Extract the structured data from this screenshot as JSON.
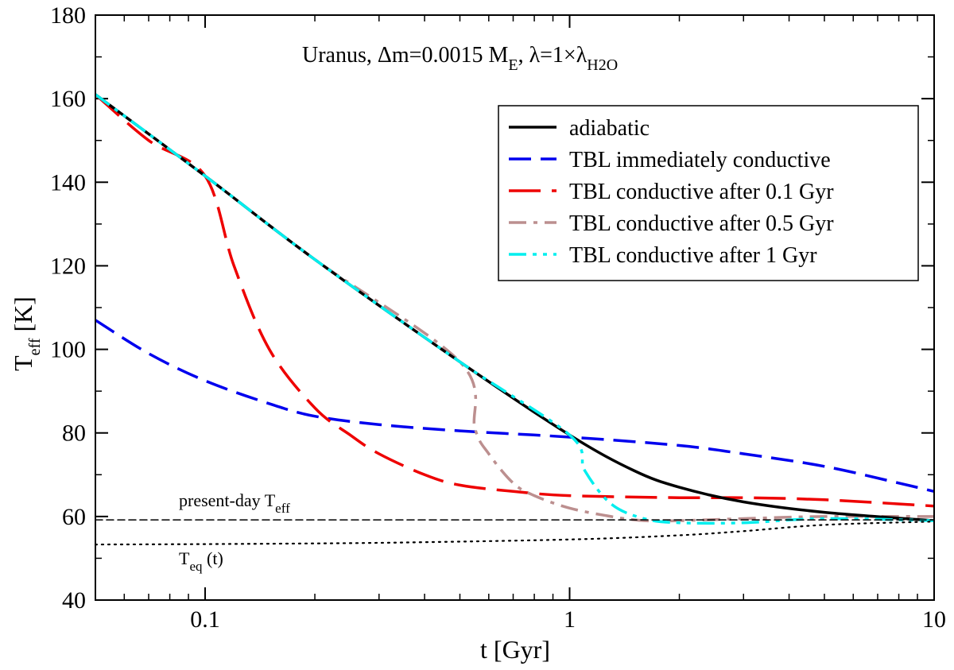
{
  "chart_data": {
    "type": "line",
    "title": "Uranus, Δm=0.0015 M",
    "title_parts": {
      "main": "Uranus, Δm=0.0015 M",
      "m_sub": "E",
      "lambda_text": ", λ=1×λ",
      "lambda_sub": "H2O"
    },
    "xlabel": "t [Gyr]",
    "ylabel": "T",
    "ylabel_sub": "eff",
    "ylabel_unit": " [K]",
    "x_scale": "log",
    "xlim": [
      0.05,
      10
    ],
    "ylim": [
      40,
      180
    ],
    "x_major_ticks": [
      {
        "value": 0.1,
        "label": "0.1"
      },
      {
        "value": 1,
        "label": "1"
      },
      {
        "value": 10,
        "label": "10"
      }
    ],
    "y_major_ticks": [
      {
        "value": 40,
        "label": "40"
      },
      {
        "value": 60,
        "label": "60"
      },
      {
        "value": 80,
        "label": "80"
      },
      {
        "value": 100,
        "label": "100"
      },
      {
        "value": 120,
        "label": "120"
      },
      {
        "value": 140,
        "label": "140"
      },
      {
        "value": 160,
        "label": "160"
      },
      {
        "value": 180,
        "label": "180"
      }
    ],
    "legend_position": "top-right",
    "series": [
      {
        "name": "adiabatic",
        "color": "#000000",
        "style": "solid",
        "x": [
          0.05,
          0.1,
          0.2,
          0.5,
          1.0,
          1.5,
          2.0,
          3.0,
          5.0,
          10.0
        ],
        "y": [
          161,
          141.5,
          121.5,
          97,
          79.5,
          71,
          67,
          63.5,
          61,
          59
        ]
      },
      {
        "name": "TBL immediately conductive",
        "color": "#0000ee",
        "style": "dashed",
        "x": [
          0.05,
          0.07,
          0.1,
          0.15,
          0.2,
          0.3,
          0.5,
          1.0,
          2.0,
          3.0,
          5.0,
          8.0,
          10.0
        ],
        "y": [
          107,
          99,
          92.5,
          87,
          84,
          82,
          80.5,
          79,
          77,
          75,
          72,
          68,
          66
        ]
      },
      {
        "name": "TBL conductive after 0.1 Gyr",
        "color": "#ee0000",
        "style": "longdash",
        "x": [
          0.05,
          0.07,
          0.1,
          0.12,
          0.15,
          0.2,
          0.25,
          0.3,
          0.4,
          0.5,
          0.7,
          1.0,
          2.0,
          3.0,
          5.0,
          10.0
        ],
        "y": [
          161,
          150,
          141.5,
          120,
          100,
          86,
          79.5,
          75,
          70,
          67.5,
          66,
          65,
          64.5,
          64.5,
          64,
          62.5
        ]
      },
      {
        "name": "TBL conductive after 0.5 Gyr",
        "color": "#bc8f8f",
        "style": "dashdot",
        "x": [
          0.05,
          0.1,
          0.2,
          0.5,
          0.55,
          0.6,
          0.7,
          0.8,
          1.0,
          1.3,
          1.6,
          2.0,
          3.0,
          5.0,
          10.0
        ],
        "y": [
          161,
          141.5,
          121.5,
          97,
          81,
          75,
          68,
          65,
          62,
          60,
          59,
          59,
          59.5,
          60,
          60
        ]
      },
      {
        "name": "TBL conductive after 1 Gyr",
        "color": "#00eeee",
        "style": "dashdotdot",
        "x": [
          0.05,
          0.1,
          0.2,
          0.5,
          1.0,
          1.1,
          1.3,
          1.6,
          2.0,
          3.0,
          5.0,
          10.0
        ],
        "y": [
          161,
          141.5,
          121.5,
          97,
          79.5,
          71,
          63,
          59.5,
          58.5,
          58.5,
          59.5,
          59
        ]
      }
    ],
    "reference_lines": [
      {
        "label": "present-day T",
        "label_sub": "eff",
        "style": "dashed-thin",
        "color": "#000000",
        "x": [
          0.05,
          10
        ],
        "y": [
          59.2,
          59.2
        ]
      },
      {
        "label": "T",
        "label_sub": "eq",
        "label_suffix": " (t)",
        "style": "dotted",
        "color": "#000000",
        "x": [
          0.05,
          0.1,
          0.3,
          1.0,
          2.0,
          3.0,
          5.0,
          10.0
        ],
        "y": [
          53.3,
          53.4,
          53.7,
          54.5,
          55.5,
          56.5,
          58,
          58.8
        ]
      }
    ]
  }
}
